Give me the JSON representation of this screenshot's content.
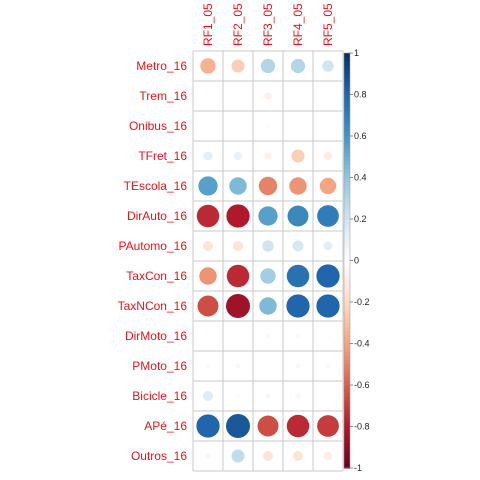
{
  "chart_data": {
    "type": "heatmap",
    "style": "corrplot-circle",
    "columns": [
      "RF1_05",
      "RF2_05",
      "RF3_05",
      "RF4_05",
      "RF5_05"
    ],
    "rows": [
      "Metro_16",
      "Trem_16",
      "Onibus_16",
      "TFret_16",
      "TEscola_16",
      "DirAuto_16",
      "PAutomo_16",
      "TaxCon_16",
      "TaxNCon_16",
      "DirMoto_16",
      "PMoto_16",
      "Bicicle_16",
      "APé_16",
      "Outros_16"
    ],
    "values": [
      [
        -0.35,
        -0.25,
        0.3,
        0.3,
        0.2
      ],
      [
        0.0,
        -0.02,
        -0.08,
        0.0,
        -0.02
      ],
      [
        0.0,
        0.0,
        -0.02,
        0.0,
        0.0
      ],
      [
        0.12,
        0.1,
        -0.08,
        -0.25,
        -0.1
      ],
      [
        0.55,
        0.45,
        -0.5,
        -0.45,
        -0.4
      ],
      [
        -0.75,
        -0.8,
        0.55,
        0.65,
        0.7
      ],
      [
        -0.15,
        -0.15,
        0.2,
        0.18,
        0.12
      ],
      [
        -0.45,
        -0.75,
        0.35,
        0.75,
        0.8
      ],
      [
        -0.65,
        -0.85,
        0.45,
        0.8,
        0.8
      ],
      [
        0.0,
        -0.02,
        0.05,
        -0.03,
        -0.03
      ],
      [
        0.03,
        -0.05,
        0.0,
        -0.05,
        -0.05
      ],
      [
        0.15,
        0.02,
        0.05,
        0.05,
        0.0
      ],
      [
        0.8,
        0.85,
        -0.65,
        -0.75,
        -0.7
      ],
      [
        0.05,
        0.25,
        -0.15,
        -0.15,
        -0.1
      ]
    ],
    "colorbar": {
      "range": [
        -1,
        1
      ],
      "ticks": [
        "1",
        "0.8",
        "0.6",
        "0.4",
        "0.2",
        "0",
        "-0.2",
        "-0.4",
        "-0.6",
        "-0.8",
        "-1"
      ],
      "tick_values": [
        1,
        0.8,
        0.6,
        0.4,
        0.2,
        0,
        -0.2,
        -0.4,
        -0.6,
        -0.8,
        -1
      ]
    },
    "colors": {
      "label_text": "#e8141a",
      "grid": "#c8c8c8",
      "scale": [
        "#67001f",
        "#b2182b",
        "#d6604d",
        "#f4a582",
        "#fddbc7",
        "#ffffff",
        "#d1e5f0",
        "#92c5de",
        "#4393c3",
        "#2166ac",
        "#053061"
      ]
    }
  }
}
